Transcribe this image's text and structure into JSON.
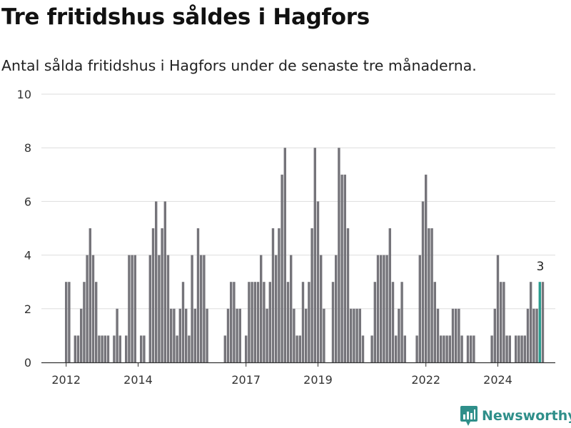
{
  "title": "Tre fritidshus såldes i Hagfors",
  "subtitle": "Antal sålda fritidshus i Hagfors under de senaste tre månaderna.",
  "brand": {
    "name": "Newsworthy"
  },
  "colors": {
    "bar": "#75747a",
    "highlight": "#2a9d8f",
    "grid": "#dddddd",
    "brand": "#2f8f8a"
  },
  "chart_data": {
    "type": "bar",
    "ylim": [
      0,
      10
    ],
    "yticks": [
      0,
      2,
      4,
      6,
      8,
      10
    ],
    "xticks": [
      {
        "label": "2012",
        "index": 0
      },
      {
        "label": "2014",
        "index": 24
      },
      {
        "label": "2017",
        "index": 60
      },
      {
        "label": "2019",
        "index": 84
      },
      {
        "label": "2022",
        "index": 120
      },
      {
        "label": "2024",
        "index": 144
      }
    ],
    "values": [
      3,
      3,
      0,
      1,
      1,
      2,
      3,
      4,
      5,
      4,
      3,
      1,
      1,
      1,
      1,
      0,
      1,
      2,
      1,
      0,
      1,
      4,
      4,
      4,
      0,
      1,
      1,
      0,
      4,
      5,
      6,
      4,
      5,
      6,
      4,
      2,
      2,
      1,
      2,
      3,
      2,
      1,
      4,
      2,
      5,
      4,
      4,
      2,
      0,
      0,
      0,
      0,
      0,
      1,
      2,
      3,
      3,
      2,
      2,
      0,
      1,
      3,
      3,
      3,
      3,
      4,
      3,
      2,
      3,
      5,
      4,
      5,
      7,
      8,
      3,
      4,
      2,
      1,
      1,
      3,
      2,
      3,
      5,
      8,
      6,
      4,
      2,
      0,
      0,
      3,
      4,
      8,
      7,
      7,
      5,
      2,
      2,
      2,
      2,
      1,
      0,
      0,
      1,
      3,
      4,
      4,
      4,
      4,
      5,
      3,
      1,
      2,
      3,
      1,
      0,
      0,
      0,
      1,
      4,
      6,
      7,
      5,
      5,
      3,
      2,
      1,
      1,
      1,
      1,
      2,
      2,
      2,
      1,
      0,
      1,
      1,
      1,
      0,
      0,
      0,
      0,
      0,
      1,
      2,
      4,
      3,
      3,
      1,
      1,
      0,
      1,
      1,
      1,
      1,
      2,
      3,
      2,
      2,
      3,
      3
    ],
    "highlight_index": 158,
    "highlight_label": "3"
  }
}
